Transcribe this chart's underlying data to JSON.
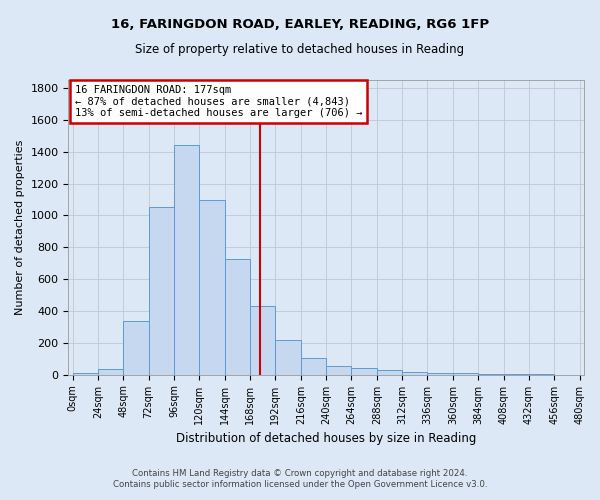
{
  "title1": "16, FARINGDON ROAD, EARLEY, READING, RG6 1FP",
  "title2": "Size of property relative to detached houses in Reading",
  "xlabel": "Distribution of detached houses by size in Reading",
  "ylabel": "Number of detached properties",
  "footer1": "Contains HM Land Registry data © Crown copyright and database right 2024.",
  "footer2": "Contains public sector information licensed under the Open Government Licence v3.0.",
  "bin_labels": [
    "0sqm",
    "24sqm",
    "48sqm",
    "72sqm",
    "96sqm",
    "120sqm",
    "144sqm",
    "168sqm",
    "192sqm",
    "216sqm",
    "240sqm",
    "264sqm",
    "288sqm",
    "312sqm",
    "336sqm",
    "360sqm",
    "384sqm",
    "408sqm",
    "432sqm",
    "456sqm",
    "480sqm"
  ],
  "bin_edges": [
    0,
    24,
    48,
    72,
    96,
    120,
    144,
    168,
    192,
    216,
    240,
    264,
    288,
    312,
    336,
    360,
    384,
    408,
    432,
    456,
    480
  ],
  "bar_heights": [
    10,
    35,
    340,
    1055,
    1440,
    1095,
    725,
    430,
    215,
    105,
    55,
    45,
    30,
    17,
    12,
    8,
    5,
    3,
    2,
    1
  ],
  "bar_color": "#c5d8f0",
  "bar_edge_color": "#5b9bd5",
  "vline_x": 177,
  "vline_color": "#cc0000",
  "annotation_text": "16 FARINGDON ROAD: 177sqm\n← 87% of detached houses are smaller (4,843)\n13% of semi-detached houses are larger (706) →",
  "annotation_box_color": "#ffffff",
  "annotation_box_edge": "#cc0000",
  "ylim": [
    0,
    1850
  ],
  "bg_color": "#dce8f5",
  "plot_bg_color": "#dce8f5",
  "yticks": [
    0,
    200,
    400,
    600,
    800,
    1000,
    1200,
    1400,
    1600,
    1800
  ]
}
